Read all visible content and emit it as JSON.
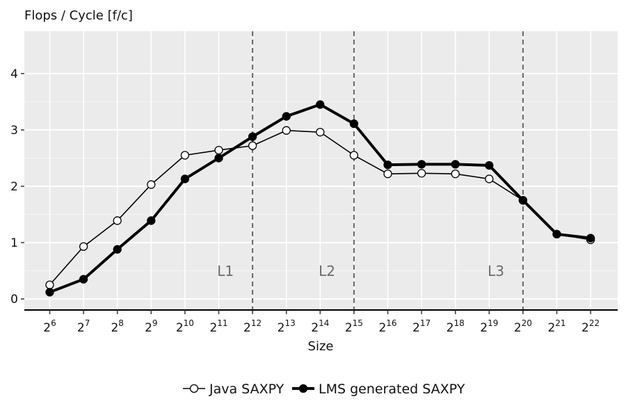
{
  "chart_data": {
    "type": "line",
    "ylabel": "Flops / Cycle [f/c]",
    "xlabel": "Size",
    "ylim": [
      -0.22,
      4.75
    ],
    "y_ticks": [
      0,
      1,
      2,
      3,
      4
    ],
    "x_base": "2",
    "x_exponents": [
      "6",
      "7",
      "8",
      "9",
      "10",
      "11",
      "12",
      "13",
      "14",
      "15",
      "16",
      "17",
      "18",
      "19",
      "20",
      "21",
      "22"
    ],
    "grid": true,
    "cache_boundaries": [
      {
        "label": "L1",
        "exponent": 12
      },
      {
        "label": "L2",
        "exponent": 15
      },
      {
        "label": "L3",
        "exponent": 20
      }
    ],
    "series": [
      {
        "name": "Java SAXPY",
        "marker": "open-circle",
        "color": "#000000",
        "values": [
          0.25,
          0.93,
          1.39,
          2.03,
          2.55,
          2.64,
          2.72,
          2.99,
          2.96,
          2.55,
          2.22,
          2.23,
          2.22,
          2.13,
          1.75,
          1.15,
          1.05
        ]
      },
      {
        "name": "LMS generated SAXPY",
        "marker": "filled-circle",
        "color": "#000000",
        "values": [
          0.12,
          0.35,
          0.88,
          1.39,
          2.13,
          2.5,
          2.88,
          3.24,
          3.45,
          3.11,
          2.38,
          2.39,
          2.39,
          2.37,
          1.75,
          1.15,
          1.08
        ]
      }
    ],
    "legend_position": "bottom",
    "colors": {
      "panel": "#ebebeb",
      "grid": "#ffffff",
      "boundary": "#666666",
      "cache_label": "#6b6b6b"
    }
  }
}
